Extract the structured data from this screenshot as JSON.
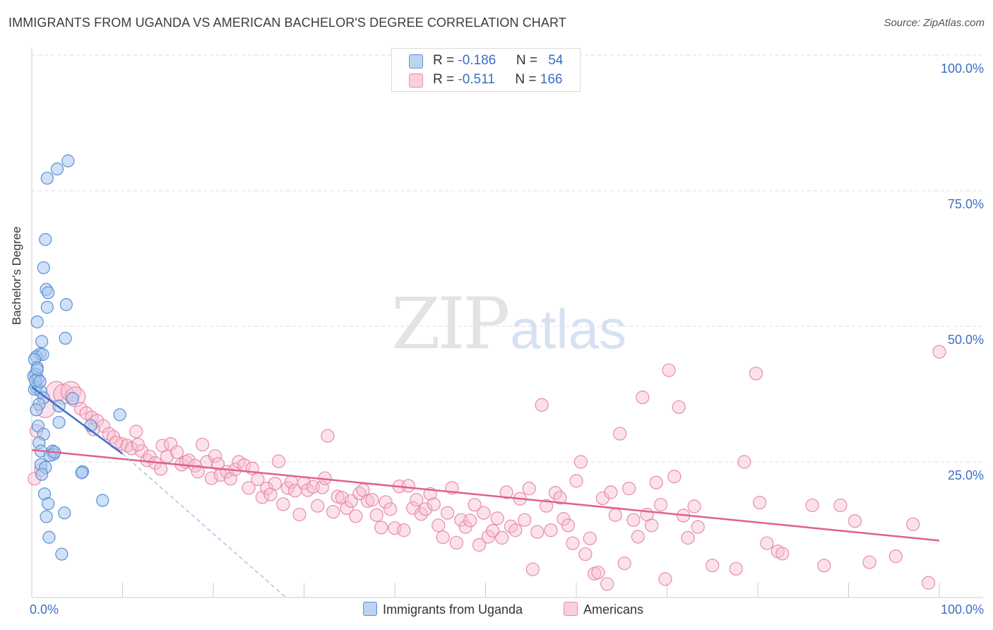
{
  "title": "IMMIGRANTS FROM UGANDA VS AMERICAN BACHELOR'S DEGREE CORRELATION CHART",
  "source": "Source: ZipAtlas.com",
  "watermark": {
    "zip": "ZIP",
    "atlas": "atlas"
  },
  "legend_top": {
    "rows": [
      {
        "r_label": "R = ",
        "r_value": "-0.186",
        "n_label": "N = ",
        "n_value": "54"
      },
      {
        "r_label": "R = ",
        "r_value": "-0.511",
        "n_label": "N = ",
        "n_value": "166"
      }
    ]
  },
  "legend_bottom": [
    {
      "label": "Immigrants from Uganda"
    },
    {
      "label": "Americans"
    }
  ],
  "colors": {
    "blue_fill": "#a9c8ee",
    "blue_stroke": "#5b8fd6",
    "blue_line": "#3d6fd0",
    "pink_fill": "#f7bfd1",
    "pink_stroke": "#e98aaa",
    "pink_line": "#e0608f",
    "axis_text": "#3a6fc4",
    "grid": "#dddddd"
  },
  "chart_data": {
    "type": "scatter",
    "title": "IMMIGRANTS FROM UGANDA VS AMERICAN BACHELOR'S DEGREE CORRELATION CHART",
    "xlabel": "",
    "ylabel": "Bachelor's Degree",
    "xlim": [
      0,
      100
    ],
    "ylim": [
      0,
      100
    ],
    "x_tick_labels": [
      {
        "value": 0,
        "label": "0.0%"
      },
      {
        "value": 100,
        "label": "100.0%"
      }
    ],
    "y_tick_labels": [
      {
        "value": 25,
        "label": "25.0%"
      },
      {
        "value": 50,
        "label": "50.0%"
      },
      {
        "value": 75,
        "label": "75.0%"
      },
      {
        "value": 100,
        "label": "100.0%"
      }
    ],
    "grid": true,
    "series": [
      {
        "name": "Immigrants from Uganda",
        "color": "#a9c8ee",
        "trend": {
          "x": [
            0,
            10
          ],
          "y": [
            38.8,
            26.5
          ],
          "dashed_extension_to": [
            28,
            0
          ]
        },
        "points": [
          [
            4,
            80.5
          ],
          [
            2.8,
            79
          ],
          [
            1.7,
            77.3
          ],
          [
            1.5,
            66
          ],
          [
            1.3,
            60.8
          ],
          [
            1.6,
            56.8
          ],
          [
            1.8,
            56.2
          ],
          [
            1.7,
            53.5
          ],
          [
            3.8,
            54
          ],
          [
            0.6,
            50.8
          ],
          [
            1.1,
            47.2
          ],
          [
            3.7,
            47.8
          ],
          [
            0.9,
            44.9
          ],
          [
            0.5,
            44.4
          ],
          [
            1.2,
            44.8
          ],
          [
            0.3,
            43.9
          ],
          [
            0.6,
            42.4
          ],
          [
            0.4,
            41.2
          ],
          [
            0.2,
            40.8
          ],
          [
            0.7,
            40.3
          ],
          [
            0.5,
            38.7
          ],
          [
            0.3,
            38.4
          ],
          [
            1.0,
            38.0
          ],
          [
            1.3,
            36.8
          ],
          [
            0.8,
            35.6
          ],
          [
            3.0,
            35.3
          ],
          [
            0.5,
            34.6
          ],
          [
            4.5,
            36.7
          ],
          [
            9.7,
            33.7
          ],
          [
            3.0,
            32.3
          ],
          [
            0.7,
            31.6
          ],
          [
            6.5,
            31.7
          ],
          [
            1.3,
            30.1
          ],
          [
            0.8,
            28.5
          ],
          [
            1.0,
            27.0
          ],
          [
            2.3,
            27.0
          ],
          [
            2.4,
            26.4
          ],
          [
            2.0,
            26.2
          ],
          [
            1.0,
            24.5
          ],
          [
            1.5,
            24.0
          ],
          [
            5.6,
            23.2
          ],
          [
            5.5,
            23.0
          ],
          [
            1.4,
            19.1
          ],
          [
            1.8,
            17.3
          ],
          [
            7.8,
            17.9
          ],
          [
            1.6,
            14.9
          ],
          [
            3.6,
            15.6
          ],
          [
            1.9,
            11.1
          ],
          [
            3.3,
            8.0
          ],
          [
            0.6,
            42.0
          ],
          [
            0.4,
            40.0
          ],
          [
            0.9,
            39.8
          ],
          [
            2.5,
            26.8
          ],
          [
            1.1,
            22.7
          ]
        ]
      },
      {
        "name": "Americans",
        "color": "#f7bfd1",
        "trend": {
          "x": [
            0,
            100
          ],
          "y": [
            27.2,
            10.5
          ]
        },
        "points": [
          [
            0.3,
            21.9
          ],
          [
            1.5,
            35.0
          ],
          [
            2.7,
            38.0
          ],
          [
            3.5,
            37.5
          ],
          [
            4.3,
            38.0
          ],
          [
            4.8,
            37.0
          ],
          [
            5.4,
            34.8
          ],
          [
            6.0,
            34.0
          ],
          [
            6.6,
            33.2
          ],
          [
            7.2,
            32.6
          ],
          [
            7.9,
            31.6
          ],
          [
            8.5,
            30.2
          ],
          [
            9.0,
            29.6
          ],
          [
            9.9,
            28.3
          ],
          [
            10.5,
            28.0
          ],
          [
            11.0,
            27.5
          ],
          [
            11.5,
            30.6
          ],
          [
            12.1,
            27.0
          ],
          [
            12.7,
            25.3
          ],
          [
            13.0,
            26.0
          ],
          [
            13.6,
            24.8
          ],
          [
            14.2,
            23.7
          ],
          [
            14.4,
            28.0
          ],
          [
            14.9,
            26.0
          ],
          [
            15.3,
            28.3
          ],
          [
            16.0,
            26.8
          ],
          [
            16.5,
            24.5
          ],
          [
            17.0,
            25.0
          ],
          [
            17.3,
            25.3
          ],
          [
            18.0,
            24.3
          ],
          [
            18.3,
            23.2
          ],
          [
            18.8,
            28.2
          ],
          [
            19.3,
            25.0
          ],
          [
            19.8,
            22.0
          ],
          [
            20.2,
            26.1
          ],
          [
            20.5,
            24.6
          ],
          [
            20.8,
            22.6
          ],
          [
            21.5,
            23.2
          ],
          [
            21.9,
            21.9
          ],
          [
            22.4,
            23.6
          ],
          [
            22.8,
            25.0
          ],
          [
            23.4,
            24.4
          ],
          [
            23.9,
            20.2
          ],
          [
            24.3,
            23.8
          ],
          [
            24.9,
            21.8
          ],
          [
            25.4,
            18.5
          ],
          [
            25.9,
            20.1
          ],
          [
            26.3,
            19.0
          ],
          [
            26.8,
            21.0
          ],
          [
            27.2,
            25.1
          ],
          [
            27.7,
            17.2
          ],
          [
            28.2,
            20.2
          ],
          [
            28.6,
            21.3
          ],
          [
            29.0,
            19.7
          ],
          [
            29.5,
            15.3
          ],
          [
            30.0,
            21.1
          ],
          [
            30.4,
            19.8
          ],
          [
            31.0,
            20.4
          ],
          [
            31.5,
            16.9
          ],
          [
            32.0,
            20.3
          ],
          [
            32.3,
            22.0
          ],
          [
            32.6,
            29.8
          ],
          [
            33.2,
            15.8
          ],
          [
            33.7,
            18.6
          ],
          [
            34.2,
            18.4
          ],
          [
            34.7,
            16.5
          ],
          [
            35.2,
            17.8
          ],
          [
            35.7,
            15.0
          ],
          [
            36.1,
            19.2
          ],
          [
            36.5,
            19.8
          ],
          [
            37.0,
            17.8
          ],
          [
            37.5,
            18.0
          ],
          [
            38.0,
            15.2
          ],
          [
            38.5,
            12.9
          ],
          [
            39.0,
            17.6
          ],
          [
            39.5,
            16.3
          ],
          [
            40.0,
            12.8
          ],
          [
            40.5,
            20.5
          ],
          [
            41.0,
            12.4
          ],
          [
            41.5,
            20.6
          ],
          [
            42.0,
            16.5
          ],
          [
            42.4,
            18.0
          ],
          [
            42.9,
            15.4
          ],
          [
            43.4,
            16.3
          ],
          [
            43.9,
            19.1
          ],
          [
            44.3,
            17.2
          ],
          [
            44.8,
            13.3
          ],
          [
            45.3,
            11.1
          ],
          [
            45.8,
            15.6
          ],
          [
            46.3,
            20.2
          ],
          [
            46.8,
            10.1
          ],
          [
            47.3,
            14.3
          ],
          [
            47.8,
            13.0
          ],
          [
            48.3,
            14.2
          ],
          [
            48.8,
            17.1
          ],
          [
            49.3,
            9.7
          ],
          [
            49.8,
            15.6
          ],
          [
            50.3,
            11.2
          ],
          [
            50.8,
            12.3
          ],
          [
            51.3,
            14.6
          ],
          [
            51.8,
            11.0
          ],
          [
            52.3,
            19.4
          ],
          [
            52.8,
            13.1
          ],
          [
            53.3,
            12.4
          ],
          [
            53.8,
            18.2
          ],
          [
            54.3,
            14.3
          ],
          [
            54.8,
            20.1
          ],
          [
            55.2,
            5.2
          ],
          [
            55.7,
            12.1
          ],
          [
            56.2,
            35.5
          ],
          [
            56.7,
            16.9
          ],
          [
            57.2,
            12.4
          ],
          [
            57.7,
            19.3
          ],
          [
            58.2,
            18.4
          ],
          [
            58.6,
            14.5
          ],
          [
            59.1,
            13.3
          ],
          [
            59.6,
            10.0
          ],
          [
            60.0,
            21.5
          ],
          [
            60.5,
            25.0
          ],
          [
            61.0,
            8.0
          ],
          [
            61.5,
            10.9
          ],
          [
            62.0,
            4.4
          ],
          [
            62.4,
            4.6
          ],
          [
            62.9,
            18.3
          ],
          [
            63.4,
            2.5
          ],
          [
            63.8,
            19.4
          ],
          [
            64.3,
            15.2
          ],
          [
            64.8,
            30.2
          ],
          [
            65.3,
            6.3
          ],
          [
            65.8,
            20.1
          ],
          [
            66.3,
            14.3
          ],
          [
            66.8,
            11.2
          ],
          [
            67.3,
            36.9
          ],
          [
            67.8,
            15.3
          ],
          [
            68.3,
            13.3
          ],
          [
            68.8,
            21.2
          ],
          [
            69.3,
            17.1
          ],
          [
            69.8,
            3.4
          ],
          [
            70.2,
            41.9
          ],
          [
            70.8,
            22.3
          ],
          [
            71.3,
            35.1
          ],
          [
            71.8,
            15.1
          ],
          [
            72.3,
            11.0
          ],
          [
            73.0,
            16.8
          ],
          [
            73.4,
            13.0
          ],
          [
            75.0,
            5.9
          ],
          [
            77.6,
            5.3
          ],
          [
            78.5,
            25.0
          ],
          [
            79.8,
            41.3
          ],
          [
            80.2,
            17.5
          ],
          [
            81.0,
            10.0
          ],
          [
            82.2,
            8.5
          ],
          [
            82.7,
            8.1
          ],
          [
            86.0,
            17.0
          ],
          [
            87.3,
            5.9
          ],
          [
            89.1,
            17.0
          ],
          [
            90.7,
            14.1
          ],
          [
            92.3,
            6.5
          ],
          [
            95.2,
            7.6
          ],
          [
            97.1,
            13.5
          ],
          [
            98.8,
            2.7
          ],
          [
            100.0,
            45.3
          ],
          [
            0.5,
            30.7
          ],
          [
            1.0,
            23.5
          ],
          [
            6.8,
            31.0
          ],
          [
            9.3,
            28.6
          ],
          [
            11.7,
            28.2
          ]
        ]
      }
    ]
  }
}
